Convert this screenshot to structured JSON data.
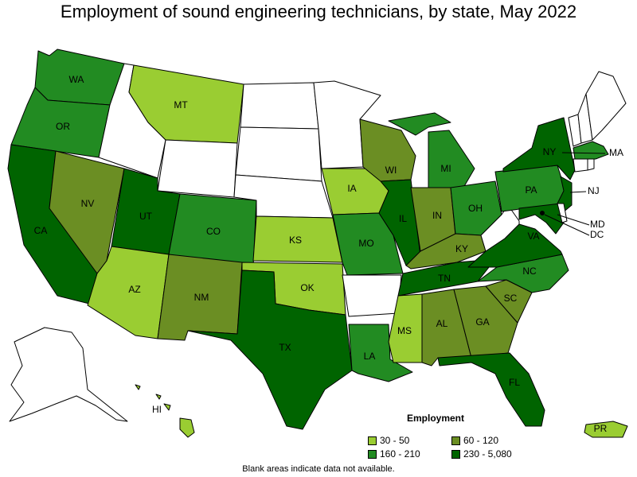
{
  "title": "Employment of sound engineering technicians, by state, May 2022",
  "legend": {
    "title": "Employment",
    "bins": [
      {
        "label": "30 - 50",
        "color": "#9acd32"
      },
      {
        "label": "60 - 120",
        "color": "#6b8e23"
      },
      {
        "label": "160 - 210",
        "color": "#228b22"
      },
      {
        "label": "230 - 5,080",
        "color": "#006400"
      }
    ]
  },
  "footnote": "Blank areas indicate data not available.",
  "colors": {
    "no_data": "#ffffff",
    "border": "#000000"
  },
  "states": {
    "WA": {
      "label": "WA",
      "bin": 2
    },
    "OR": {
      "label": "OR",
      "bin": 2
    },
    "CA": {
      "label": "CA",
      "bin": 3
    },
    "NV": {
      "label": "NV",
      "bin": 1
    },
    "ID": {
      "label": "",
      "bin": null
    },
    "MT": {
      "label": "MT",
      "bin": 0
    },
    "WY": {
      "label": "",
      "bin": null
    },
    "UT": {
      "label": "UT",
      "bin": 3
    },
    "AZ": {
      "label": "AZ",
      "bin": 0
    },
    "CO": {
      "label": "CO",
      "bin": 2
    },
    "NM": {
      "label": "NM",
      "bin": 1
    },
    "ND": {
      "label": "",
      "bin": null
    },
    "SD": {
      "label": "",
      "bin": null
    },
    "NE": {
      "label": "",
      "bin": null
    },
    "KS": {
      "label": "KS",
      "bin": 0
    },
    "OK": {
      "label": "OK",
      "bin": 0
    },
    "TX": {
      "label": "TX",
      "bin": 3
    },
    "MN": {
      "label": "",
      "bin": null
    },
    "IA": {
      "label": "IA",
      "bin": 0
    },
    "MO": {
      "label": "MO",
      "bin": 2
    },
    "AR": {
      "label": "",
      "bin": null
    },
    "LA": {
      "label": "LA",
      "bin": 2
    },
    "WI": {
      "label": "WI",
      "bin": 1
    },
    "IL": {
      "label": "IL",
      "bin": 3
    },
    "MI": {
      "label": "MI",
      "bin": 2
    },
    "IN": {
      "label": "IN",
      "bin": 1
    },
    "OH": {
      "label": "OH",
      "bin": 2
    },
    "KY": {
      "label": "KY",
      "bin": 1
    },
    "TN": {
      "label": "TN",
      "bin": 3
    },
    "MS": {
      "label": "MS",
      "bin": 0
    },
    "AL": {
      "label": "AL",
      "bin": 1
    },
    "GA": {
      "label": "GA",
      "bin": 1
    },
    "FL": {
      "label": "FL",
      "bin": 3
    },
    "SC": {
      "label": "SC",
      "bin": 1
    },
    "NC": {
      "label": "NC",
      "bin": 2
    },
    "VA": {
      "label": "VA",
      "bin": 3
    },
    "WV": {
      "label": "",
      "bin": null
    },
    "PA": {
      "label": "PA",
      "bin": 2
    },
    "NY": {
      "label": "NY",
      "bin": 3
    },
    "NJ": {
      "label": "NJ",
      "bin": 3
    },
    "MD": {
      "label": "MD",
      "bin": 3
    },
    "DE": {
      "label": "",
      "bin": null
    },
    "DC": {
      "label": "DC",
      "bin": 3
    },
    "CT": {
      "label": "",
      "bin": null
    },
    "RI": {
      "label": "",
      "bin": null
    },
    "MA": {
      "label": "MA",
      "bin": 2
    },
    "VT": {
      "label": "",
      "bin": null
    },
    "NH": {
      "label": "",
      "bin": null
    },
    "ME": {
      "label": "",
      "bin": null
    },
    "AK": {
      "label": "",
      "bin": null
    },
    "HI": {
      "label": "HI",
      "bin": 0
    },
    "PR": {
      "label": "PR",
      "bin": 0
    }
  }
}
